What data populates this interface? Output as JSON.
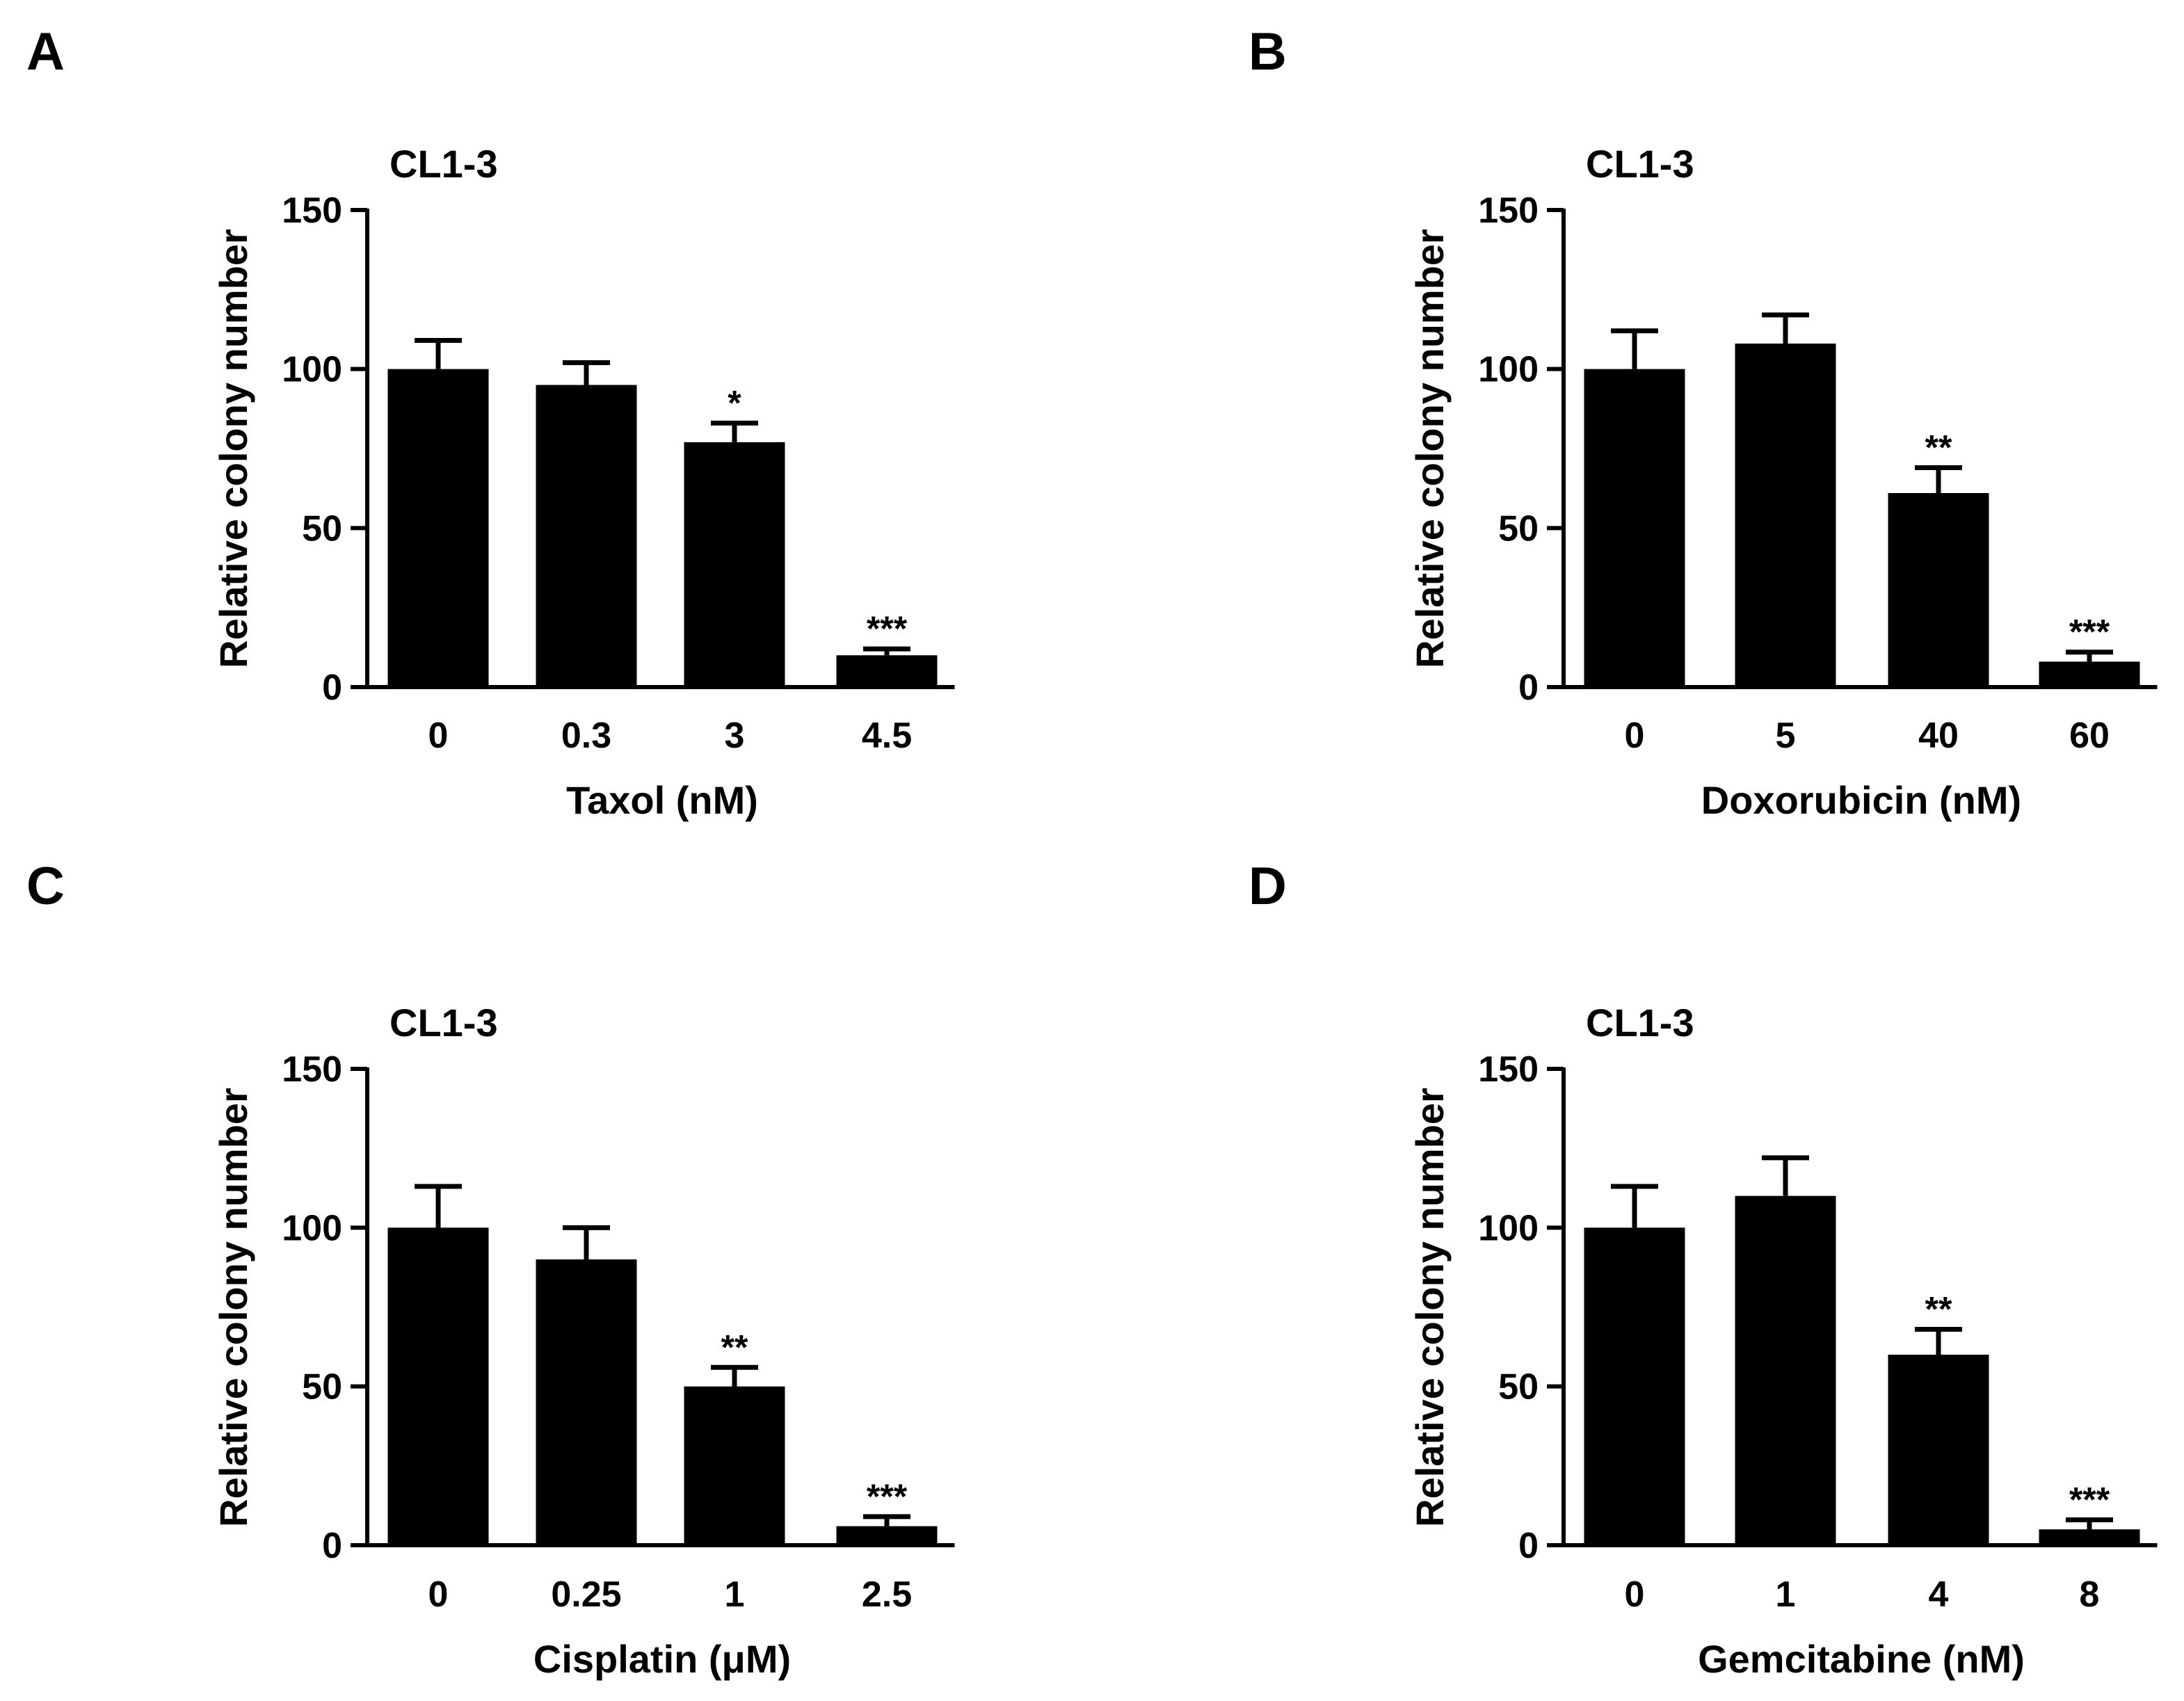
{
  "figure": {
    "panels": [
      {
        "letter": "A"
      },
      {
        "letter": "B"
      },
      {
        "letter": "C"
      },
      {
        "letter": "D"
      }
    ]
  },
  "chart_data": [
    {
      "type": "bar",
      "title": "CL1-3",
      "xlabel": "Taxol (nM)",
      "ylabel": "Relative colony number",
      "ylim": [
        0,
        150
      ],
      "yticks": [
        0,
        50,
        100,
        150
      ],
      "categories": [
        "0",
        "0.3",
        "3",
        "4.5"
      ],
      "values": [
        100,
        95,
        77,
        10
      ],
      "errors": [
        9,
        7,
        6,
        2
      ],
      "significance": [
        "",
        "",
        "*",
        "***"
      ],
      "color": "#000000"
    },
    {
      "type": "bar",
      "title": "CL1-3",
      "xlabel": "Doxorubicin (nM)",
      "ylabel": "Relative colony number",
      "ylim": [
        0,
        150
      ],
      "yticks": [
        0,
        50,
        100,
        150
      ],
      "categories": [
        "0",
        "5",
        "40",
        "60"
      ],
      "values": [
        100,
        108,
        61,
        8
      ],
      "errors": [
        12,
        9,
        8,
        3
      ],
      "significance": [
        "",
        "",
        "**",
        "***"
      ],
      "color": "#000000"
    },
    {
      "type": "bar",
      "title": "CL1-3",
      "xlabel": "Cisplatin (μM)",
      "ylabel": "Relative colony number",
      "ylim": [
        0,
        150
      ],
      "yticks": [
        0,
        50,
        100,
        150
      ],
      "categories": [
        "0",
        "0.25",
        "1",
        "2.5"
      ],
      "values": [
        100,
        90,
        50,
        6
      ],
      "errors": [
        13,
        10,
        6,
        3
      ],
      "significance": [
        "",
        "",
        "**",
        "***"
      ],
      "color": "#000000"
    },
    {
      "type": "bar",
      "title": "CL1-3",
      "xlabel": "Gemcitabine (nM)",
      "ylabel": "Relative colony number",
      "ylim": [
        0,
        150
      ],
      "yticks": [
        0,
        50,
        100,
        150
      ],
      "categories": [
        "0",
        "1",
        "4",
        "8"
      ],
      "values": [
        100,
        110,
        60,
        5
      ],
      "errors": [
        13,
        12,
        8,
        3
      ],
      "significance": [
        "",
        "",
        "**",
        "***"
      ],
      "color": "#000000"
    }
  ]
}
